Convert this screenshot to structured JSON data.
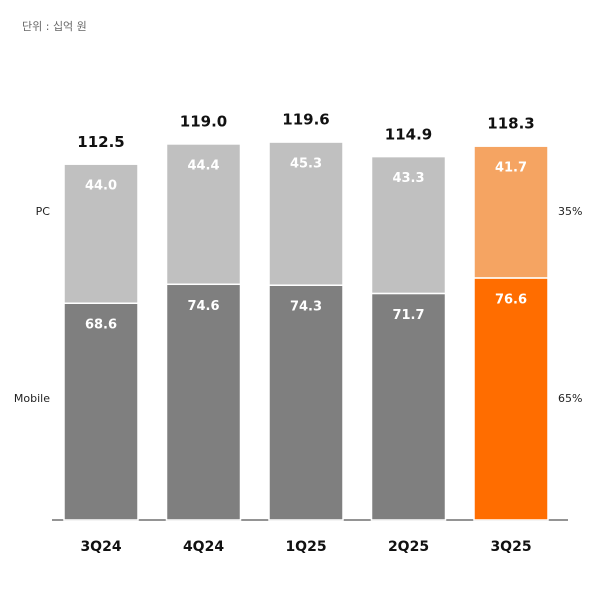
{
  "chart_data": {
    "type": "stacked-bar",
    "unit_note": "단위 : 십억 원",
    "categories": [
      "3Q24",
      "4Q24",
      "1Q25",
      "2Q25",
      "3Q25"
    ],
    "series": [
      {
        "name": "Mobile",
        "color": "#7f7f7f",
        "highlight_color": "#ff6d00",
        "values": [
          68.6,
          74.6,
          74.3,
          71.7,
          76.6
        ],
        "share": 65,
        "share_label": "65%"
      },
      {
        "name": "PC",
        "color": "#c0c0c0",
        "highlight_color": "#f5a462",
        "values": [
          44.0,
          44.4,
          45.3,
          43.3,
          41.7
        ],
        "value_labels": [
          "44.0",
          "44.4",
          "45.3",
          "43.3",
          "41.7"
        ],
        "share": 35,
        "share_label": "35%"
      }
    ],
    "highlight_index": 4,
    "totals": [
      112.5,
      119.0,
      119.6,
      114.9,
      118.3
    ],
    "total_labels": [
      "112.5",
      "119.0",
      "119.6",
      "114.9",
      "118.3"
    ]
  }
}
